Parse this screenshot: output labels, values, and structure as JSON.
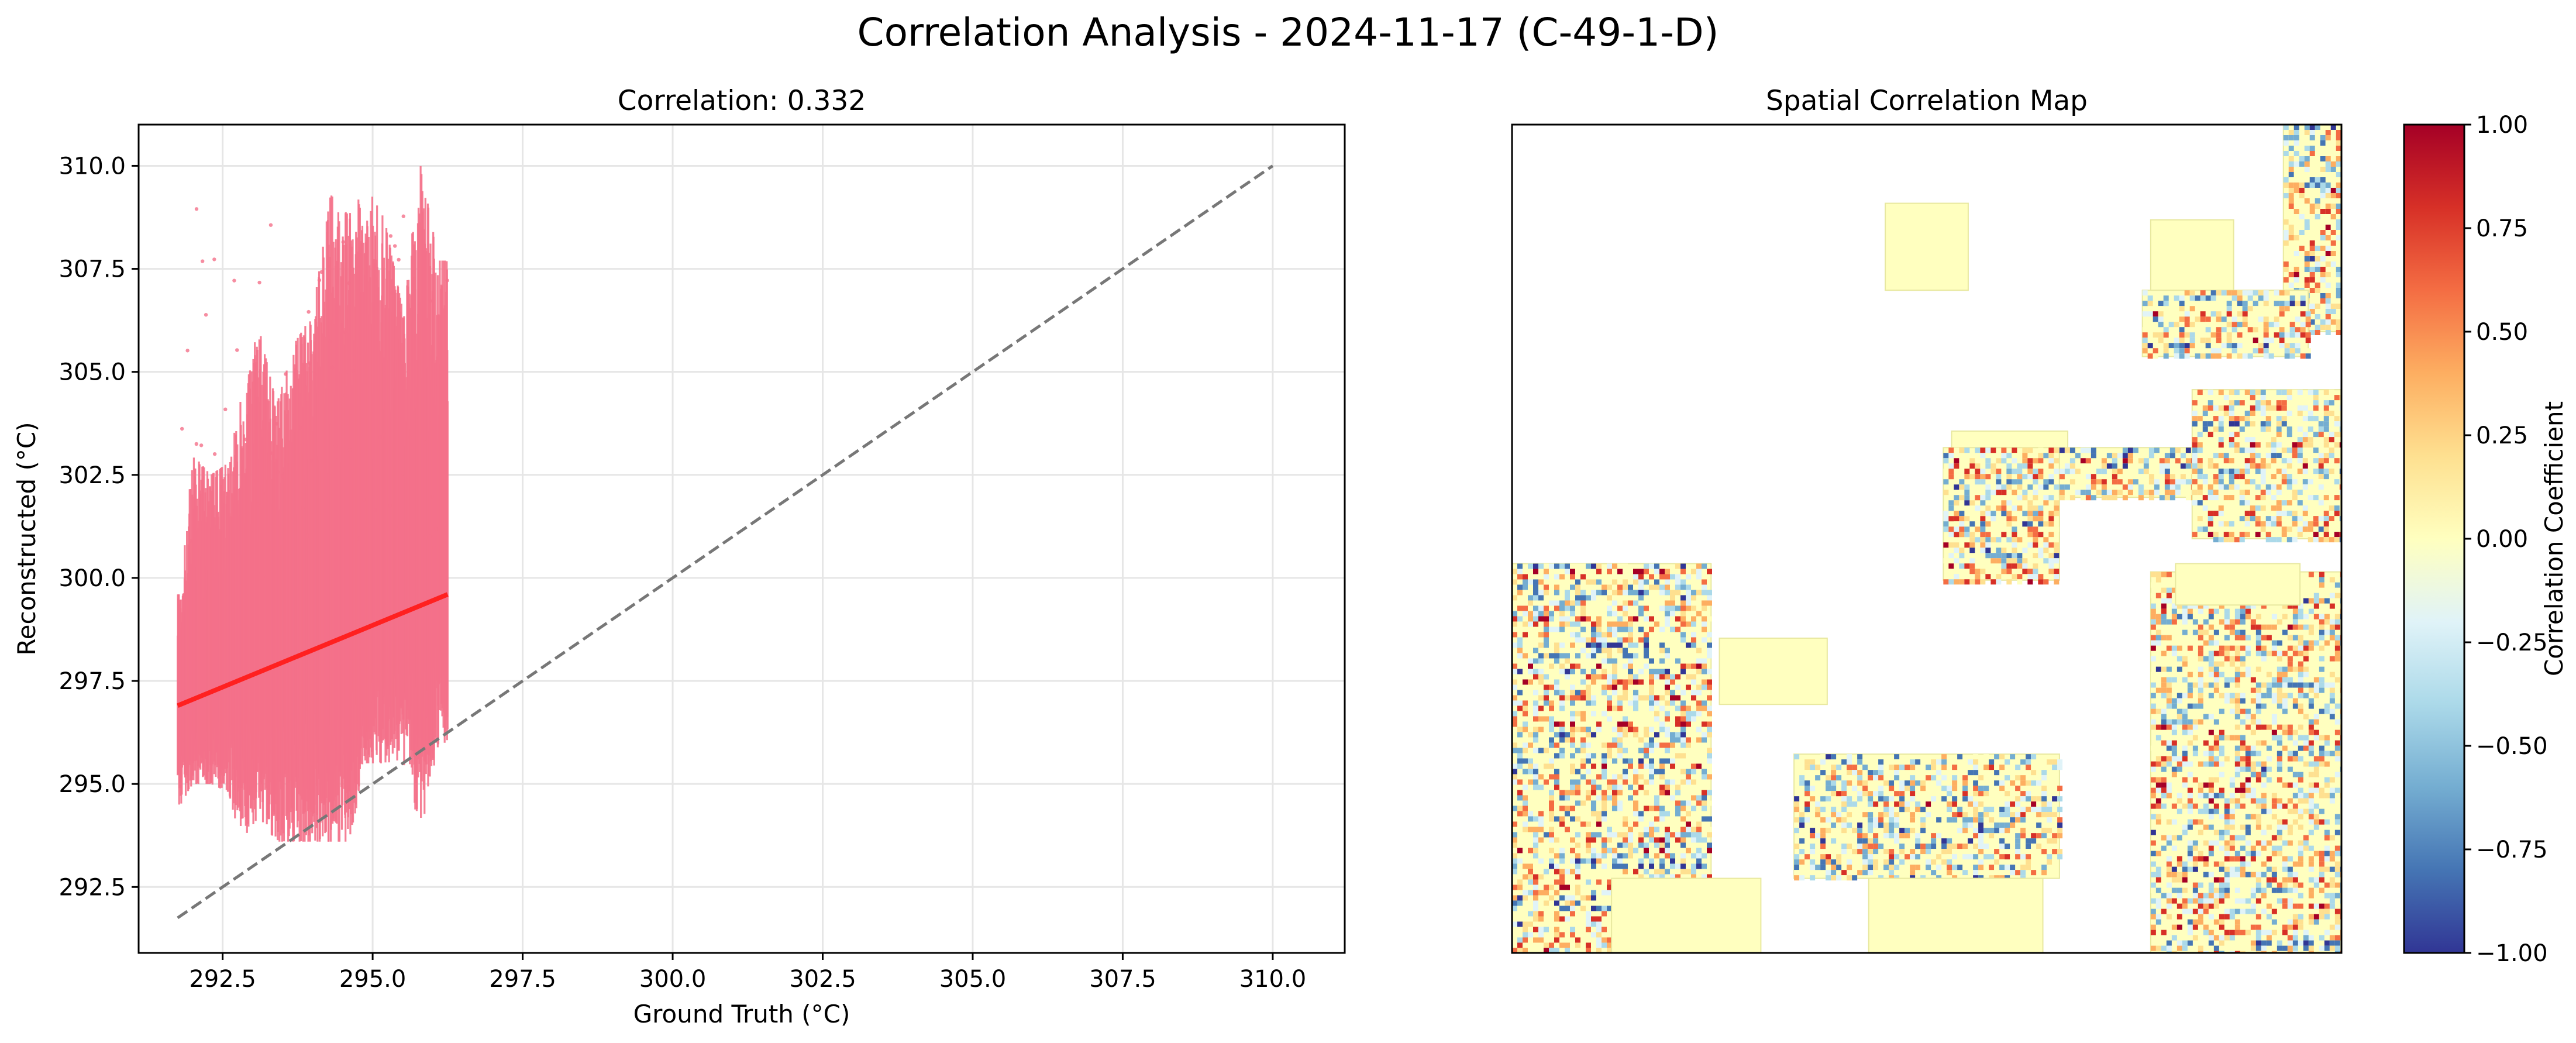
{
  "figure": {
    "title": "Correlation Analysis - 2024-11-17 (C-49-1-D)"
  },
  "chart_data": [
    {
      "type": "scatter",
      "title": "Correlation: 0.332",
      "xlabel": "Ground Truth (°C)",
      "ylabel": "Reconstructed (°C)",
      "xlim": [
        291.1,
        311.2
      ],
      "ylim": [
        290.9,
        311.0
      ],
      "xticks": [
        "292.5",
        "295.0",
        "297.5",
        "300.0",
        "302.5",
        "305.0",
        "307.5",
        "310.0"
      ],
      "yticks": [
        "292.5",
        "295.0",
        "297.5",
        "300.0",
        "302.5",
        "305.0",
        "307.5",
        "310.0"
      ],
      "grid": true,
      "point_color": "#f4718a",
      "x_range_of_points": [
        291.75,
        296.25
      ],
      "y_range_of_points": [
        293.6,
        310.0
      ],
      "point_columns": [
        {
          "x": 291.8,
          "ymin": 294.5,
          "ymax": 299.6
        },
        {
          "x": 292.0,
          "ymin": 295.0,
          "ymax": 303.0
        },
        {
          "x": 292.3,
          "ymin": 295.0,
          "ymax": 302.5
        },
        {
          "x": 292.6,
          "ymin": 294.8,
          "ymax": 302.8
        },
        {
          "x": 292.8,
          "ymin": 293.6,
          "ymax": 304.3
        },
        {
          "x": 293.1,
          "ymin": 294.2,
          "ymax": 306.1
        },
        {
          "x": 293.4,
          "ymin": 293.6,
          "ymax": 304.2
        },
        {
          "x": 293.7,
          "ymin": 293.6,
          "ymax": 305.7
        },
        {
          "x": 294.0,
          "ymin": 293.6,
          "ymax": 306.4
        },
        {
          "x": 294.3,
          "ymin": 293.6,
          "ymax": 309.3
        },
        {
          "x": 294.6,
          "ymin": 293.6,
          "ymax": 308.8
        },
        {
          "x": 294.9,
          "ymin": 295.5,
          "ymax": 309.5
        },
        {
          "x": 295.2,
          "ymin": 295.5,
          "ymax": 308.7
        },
        {
          "x": 295.5,
          "ymin": 295.6,
          "ymax": 306.5
        },
        {
          "x": 295.8,
          "ymin": 293.8,
          "ymax": 310.0
        },
        {
          "x": 296.1,
          "ymin": 296.0,
          "ymax": 307.7
        }
      ],
      "fit_line": {
        "color": "#ff2020",
        "points": [
          [
            291.75,
            296.9
          ],
          [
            296.25,
            299.6
          ]
        ]
      },
      "identity_line": {
        "color": "#777777",
        "style": "dashed",
        "points": [
          [
            291.75,
            291.75
          ],
          [
            310.0,
            310.0
          ]
        ]
      }
    },
    {
      "type": "heatmap",
      "title": "Spatial Correlation Map",
      "colorbar": {
        "label": "Correlation Coefficient",
        "range": [
          -1.0,
          1.0
        ],
        "ticks": [
          "1.00",
          "0.75",
          "0.50",
          "0.25",
          "0.00",
          "−0.25",
          "−0.50",
          "−0.75",
          "−1.00"
        ],
        "colormap": "RdYlBu_r",
        "colors": [
          "#313695",
          "#4575b4",
          "#74add1",
          "#abd9e9",
          "#e0f3f8",
          "#ffffbf",
          "#fee090",
          "#fdae61",
          "#f46d43",
          "#d73027",
          "#a50026"
        ]
      },
      "background_value_color": "#ffffbf",
      "missing_color": "#ffffff"
    }
  ]
}
